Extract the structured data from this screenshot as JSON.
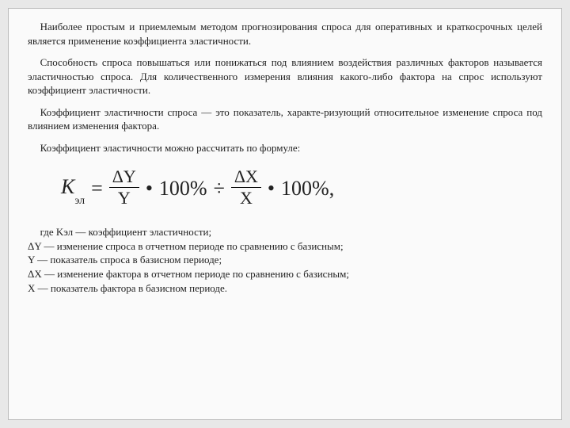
{
  "para1": "Наиболее простым и приемлемым методом прогнозирования спроса для оперативных и краткосрочных целей является применение коэффициента эластичности.",
  "para2": "Способность спроса повышаться или понижаться под влиянием воздействия различных факторов называется эластичностью спроса. Для количественного измерения влияния какого-либо фактора на спрос используют коэффициент эластичности.",
  "para3": "Коэффициент эластичности спроса — это показатель, характе-ризующий относительное изменение спроса под влиянием изменения фактора.",
  "para4": "Коэффициент эластичности можно рассчитать по формуле:",
  "formula": {
    "lhs_sym": "K",
    "lhs_sub": "эл",
    "eq": "=",
    "f1_num": "ΔY",
    "f1_den": "Y",
    "dot": "•",
    "hundred": "100%",
    "div": "÷",
    "f2_num": "ΔX",
    "f2_den": "X",
    "tail": "100%,"
  },
  "defs": {
    "intro": "где Kэл — коэффициент эластичности;",
    "d1": "ΔY — изменение спроса в отчетном периоде по сравнению с базисным;",
    "d2": "Y — показатель спроса в базисном периоде;",
    "d3": "ΔX — изменение фактора в отчетном периоде по сравнению с базисным;",
    "d4": "X — показатель фактора в базисном периоде."
  }
}
